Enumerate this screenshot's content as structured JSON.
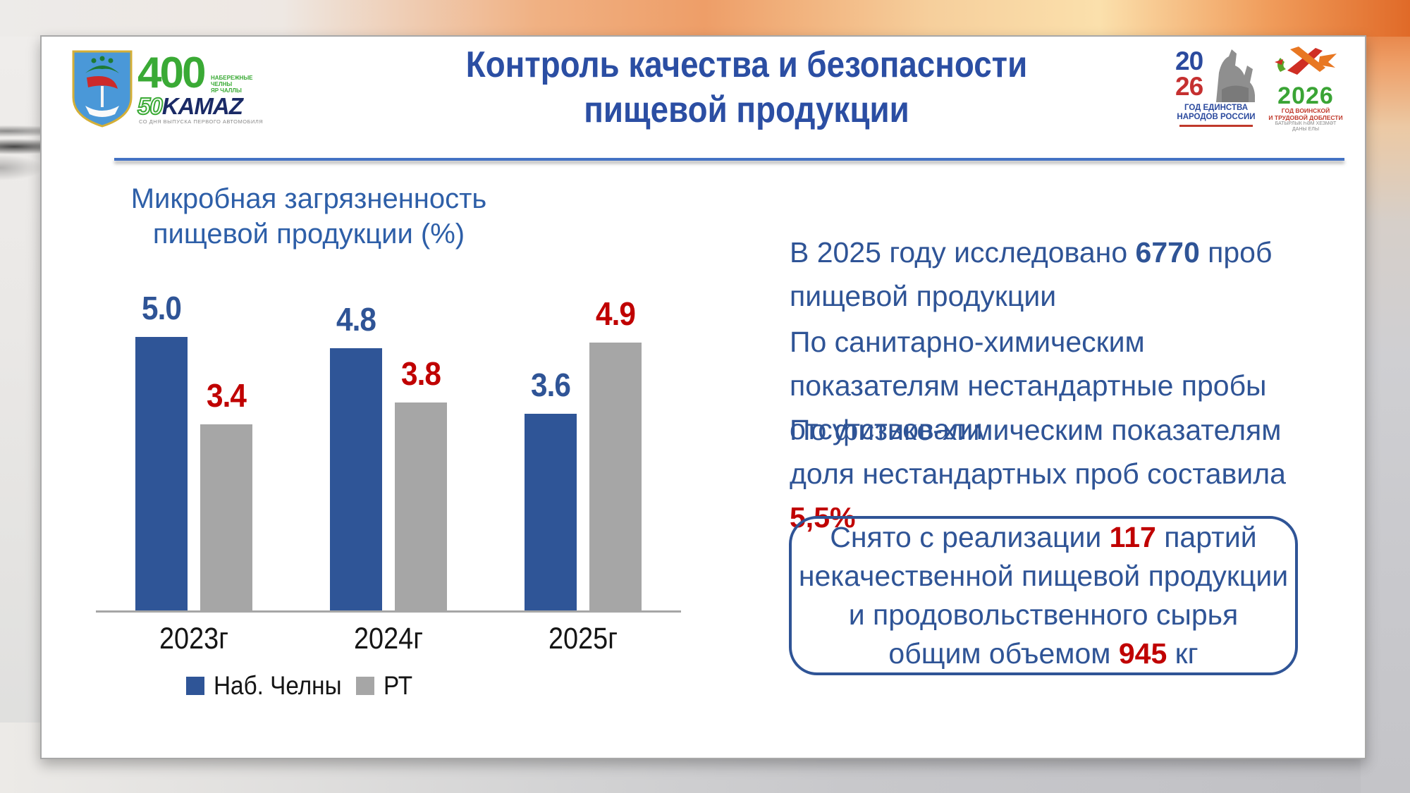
{
  "colors": {
    "title_blue": "#2b4ea3",
    "body_blue": "#2f5496",
    "chart_title_blue": "#2e5fa8",
    "red": "#c00000",
    "bar_blue": "#2F5597",
    "bar_gray": "#A6A6A6",
    "rule_blue": "#4472C4",
    "axis_gray": "#a6a6a6"
  },
  "slide": {
    "title_line1": "Контроль качества и безопасности",
    "title_line2": "пищевой продукции"
  },
  "logos": {
    "anniversary": {
      "number": "400",
      "city_line1": "НАБЕРЕЖНЫЕ ЧЕЛНЫ",
      "city_line2": "ЯР ЧАЛЛЫ",
      "fifty": "50",
      "kamaz": "KAMAZ",
      "subtitle": "СО ДНЯ ВЫПУСКА ПЕРВОГО АВТОМОБИЛЯ"
    },
    "unity": {
      "year_top": "20",
      "year_bottom": "26",
      "cap_line1": "ГОД ЕДИНСТВА",
      "cap_line2": "НАРОДОВ РОССИИ"
    },
    "valor": {
      "year": "2026",
      "red_line1": "ГОД ВОИНСКОЙ",
      "red_line2": "И ТРУДОВОЙ ДОБЛЕСТИ",
      "gray_line1": "БАТЫРЛЫК ҺӘМ ХЕЗМӘТ",
      "gray_line2": "ДАНЫ ЕЛЫ"
    }
  },
  "chart_data": {
    "type": "bar",
    "title_line1": "Микробная загрязненность",
    "title_line2": "пищевой продукции (%)",
    "categories": [
      "2023г",
      "2024г",
      "2025г"
    ],
    "series": [
      {
        "name": "Наб. Челны",
        "values": [
          5.0,
          4.8,
          3.6
        ],
        "color": "#2F5597",
        "label_color": "#2f5496"
      },
      {
        "name": "РТ",
        "values": [
          3.4,
          3.8,
          4.9
        ],
        "color": "#A6A6A6",
        "label_color": "#c00000"
      }
    ],
    "value_labels": [
      [
        "5.0",
        "4.8",
        "3.6"
      ],
      [
        "3.4",
        "3.8",
        "4.9"
      ]
    ],
    "ylim": [
      0,
      5.2
    ],
    "grid": false,
    "legend_position": "bottom"
  },
  "right_panel": {
    "p1": {
      "a": "В 2025 году исследовано ",
      "b": "6770",
      "c": " проб пищевой продукции"
    },
    "p2": "По санитарно-химическим показателям нестандартные пробы отсутствовали",
    "p3": {
      "a": "По физико-химическим показателям доля нестандартных проб составила ",
      "b": "5,5%"
    },
    "box": {
      "l1a": "Снято с реализации ",
      "l1b": "117",
      "l1c": " партий",
      "l2": "некачественной пищевой продукции",
      "l3": "и продовольственного сырья",
      "l4a": "общим объемом ",
      "l4b": "945",
      "l4c": " кг"
    }
  }
}
